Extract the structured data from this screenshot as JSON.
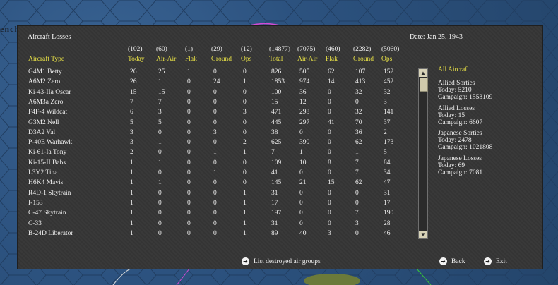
{
  "background": {
    "label": "ench. T.."
  },
  "window": {
    "title": "Aircraft Losses",
    "date": "Date: Jan 25, 1943"
  },
  "columns": [
    {
      "total": "(102)",
      "label": "Today"
    },
    {
      "total": "(60)",
      "label": "Air-Air"
    },
    {
      "total": "(1)",
      "label": "Flak"
    },
    {
      "total": "(29)",
      "label": "Ground"
    },
    {
      "total": "(12)",
      "label": "Ops"
    },
    {
      "total": "(14877)",
      "label": "Total"
    },
    {
      "total": "(7075)",
      "label": "Air-Air"
    },
    {
      "total": "(460)",
      "label": "Flak"
    },
    {
      "total": "(2282)",
      "label": "Ground"
    },
    {
      "total": "(5060)",
      "label": "Ops"
    }
  ],
  "type_header": "Aircraft Type",
  "rows": [
    {
      "type": "G4M1 Betty",
      "v": [
        "26",
        "25",
        "1",
        "0",
        "0",
        "826",
        "505",
        "62",
        "107",
        "152"
      ]
    },
    {
      "type": "A6M2 Zero",
      "v": [
        "26",
        "1",
        "0",
        "24",
        "1",
        "1853",
        "974",
        "14",
        "413",
        "452"
      ]
    },
    {
      "type": "Ki-43-IIa Oscar",
      "v": [
        "15",
        "15",
        "0",
        "0",
        "0",
        "100",
        "36",
        "0",
        "32",
        "32"
      ]
    },
    {
      "type": "A6M3a Zero",
      "v": [
        "7",
        "7",
        "0",
        "0",
        "0",
        "15",
        "12",
        "0",
        "0",
        "3"
      ]
    },
    {
      "type": "F4F-4 Wildcat",
      "v": [
        "6",
        "3",
        "0",
        "0",
        "3",
        "471",
        "298",
        "0",
        "32",
        "141"
      ]
    },
    {
      "type": "G3M2 Nell",
      "v": [
        "5",
        "5",
        "0",
        "0",
        "0",
        "445",
        "297",
        "41",
        "70",
        "37"
      ]
    },
    {
      "type": "D3A2 Val",
      "v": [
        "3",
        "0",
        "0",
        "3",
        "0",
        "38",
        "0",
        "0",
        "36",
        "2"
      ]
    },
    {
      "type": "P-40E Warhawk",
      "v": [
        "3",
        "1",
        "0",
        "0",
        "2",
        "625",
        "390",
        "0",
        "62",
        "173"
      ]
    },
    {
      "type": "Ki-61-Ia Tony",
      "v": [
        "2",
        "0",
        "0",
        "1",
        "1",
        "7",
        "1",
        "0",
        "1",
        "5"
      ]
    },
    {
      "type": "Ki-15-II Babs",
      "v": [
        "1",
        "1",
        "0",
        "0",
        "0",
        "109",
        "10",
        "8",
        "7",
        "84"
      ]
    },
    {
      "type": "L3Y2 Tina",
      "v": [
        "1",
        "0",
        "0",
        "1",
        "0",
        "41",
        "0",
        "0",
        "7",
        "34"
      ]
    },
    {
      "type": "H6K4 Mavis",
      "v": [
        "1",
        "1",
        "0",
        "0",
        "0",
        "145",
        "21",
        "15",
        "62",
        "47"
      ]
    },
    {
      "type": "R4D-1 Skytrain",
      "v": [
        "1",
        "0",
        "0",
        "0",
        "1",
        "31",
        "0",
        "0",
        "0",
        "31"
      ]
    },
    {
      "type": "I-153",
      "v": [
        "1",
        "0",
        "0",
        "0",
        "1",
        "17",
        "0",
        "0",
        "0",
        "17"
      ]
    },
    {
      "type": "C-47 Skytrain",
      "v": [
        "1",
        "0",
        "0",
        "0",
        "1",
        "197",
        "0",
        "0",
        "7",
        "190"
      ]
    },
    {
      "type": "C-33",
      "v": [
        "1",
        "0",
        "0",
        "0",
        "1",
        "31",
        "0",
        "0",
        "3",
        "28"
      ]
    },
    {
      "type": "B-24D Liberator",
      "v": [
        "1",
        "0",
        "0",
        "0",
        "1",
        "89",
        "40",
        "3",
        "0",
        "46"
      ]
    }
  ],
  "summary": {
    "title": "All Aircraft",
    "allied_sorties": {
      "label": "Allied Sorties",
      "today": "Today:   5210",
      "campaign": "Campaign: 1553109"
    },
    "allied_losses": {
      "label": "Allied Losses",
      "today": "Today:   15",
      "campaign": "Campaign: 6607"
    },
    "japanese_sorties": {
      "label": "Japanese Sorties",
      "today": "Today:   2478",
      "campaign": "Campaign: 1021808"
    },
    "japanese_losses": {
      "label": "Japanese Losses",
      "today": "Today:   69",
      "campaign": "Campaign: 7081"
    }
  },
  "footer": {
    "list_destroyed": "List destroyed air groups",
    "back": "Back",
    "exit": "Exit"
  },
  "scroll": {
    "up_glyph": "▲",
    "down_glyph": "▼"
  }
}
